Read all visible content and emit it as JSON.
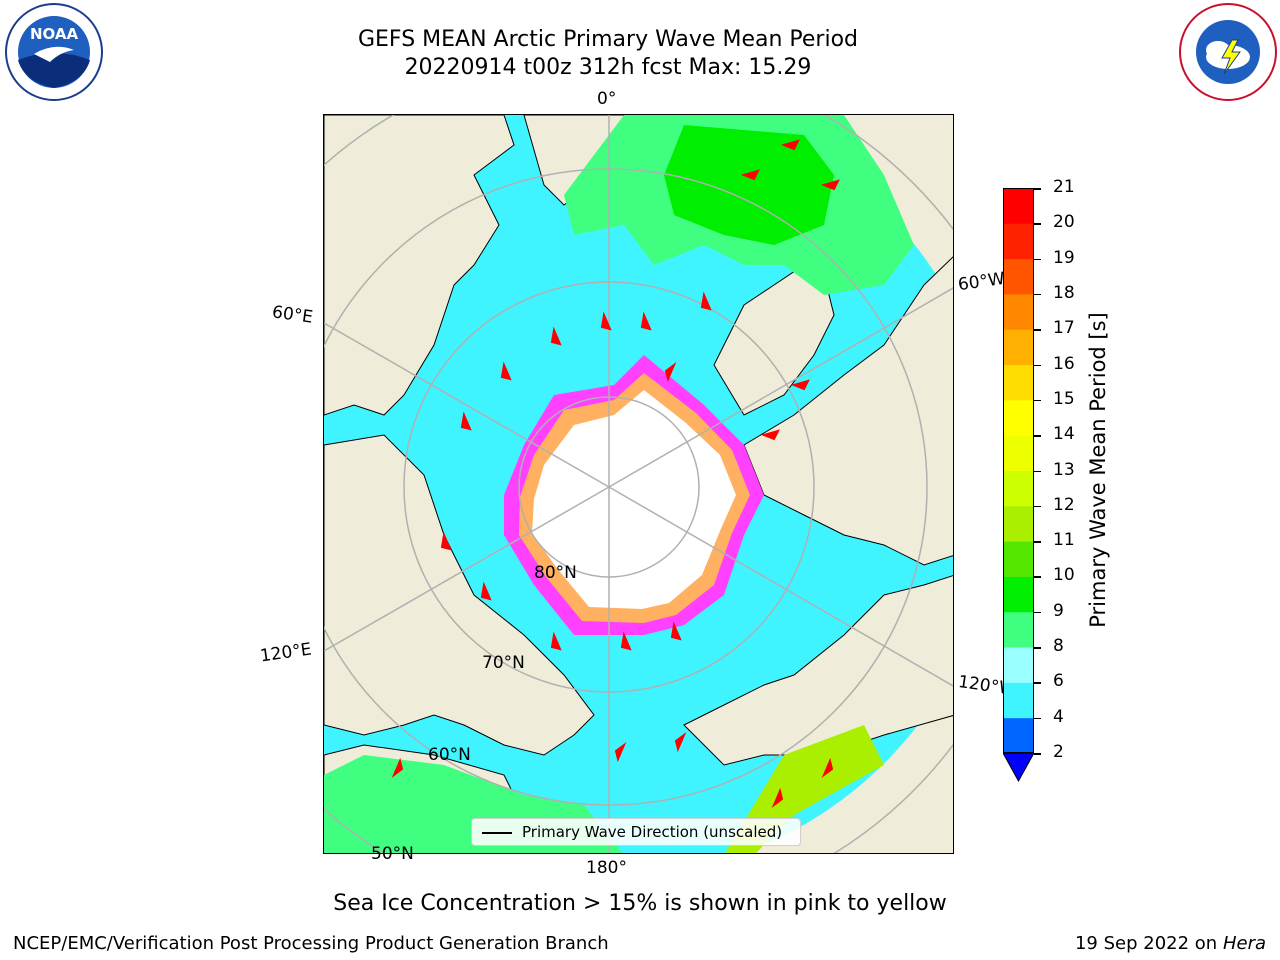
{
  "title": {
    "line1": "GEFS MEAN Arctic Primary Wave Mean Period",
    "line2": "20220914 t00z 312h fcst   Max: 15.29"
  },
  "map": {
    "lon_labels": [
      "0°",
      "60°E",
      "120°E",
      "180°",
      "120°W",
      "60°W"
    ],
    "lat_labels": [
      "80°N",
      "70°N",
      "60°N",
      "50°N"
    ],
    "legend": "Primary Wave Direction (unscaled)",
    "colors": {
      "land": "#efecd9",
      "ice_core": "#ffffff",
      "ice_edge_pink": "#ff40ff",
      "ice_edge_orange": "#ffb060",
      "arrow": "#ff0000"
    }
  },
  "colorbar": {
    "label": "Primary Wave Mean Period [s]",
    "ticks": [
      "2",
      "4",
      "6",
      "8",
      "9",
      "10",
      "11",
      "12",
      "13",
      "14",
      "15",
      "16",
      "17",
      "18",
      "19",
      "20",
      "21"
    ],
    "colors": [
      "#0066ff",
      "#00eeff",
      "#40f4ff",
      "#99ffff",
      "#40ff80",
      "#00ee00",
      "#55e600",
      "#aaee00",
      "#ccff00",
      "#eeff00",
      "#ffff00",
      "#ffdd00",
      "#ffb000",
      "#ff8800",
      "#ff5500",
      "#ff2200",
      "#ff0000"
    ],
    "under_color": "#0000ff"
  },
  "caption": "Sea Ice Concentration > 15% is shown in pink to yellow",
  "footer": {
    "credit": "NCEP/EMC/Verification Post Processing Product Generation Branch",
    "date": "19 Sep 2022 on",
    "machine": "Hera"
  }
}
